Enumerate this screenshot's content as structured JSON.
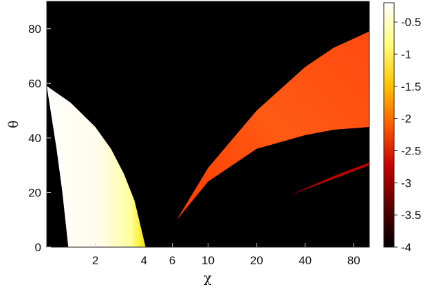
{
  "chart_data": {
    "type": "heatmap",
    "title": "",
    "xlabel": "χ",
    "ylabel": "θ",
    "x_scale": "log",
    "x_ticks": [
      2,
      4,
      6,
      10,
      20,
      40,
      80
    ],
    "x_tick_labels": [
      "2",
      "4",
      "6",
      "10",
      "20",
      "40",
      "80"
    ],
    "xlim": [
      1,
      100
    ],
    "y_ticks": [
      0,
      20,
      40,
      60,
      80
    ],
    "y_tick_labels": [
      "0",
      "20",
      "40",
      "60",
      "80"
    ],
    "ylim": [
      0,
      90
    ],
    "background_value": -4,
    "colorbar": {
      "min": -4,
      "max": -0.2,
      "ticks": [
        -0.5,
        -1,
        -1.5,
        -2,
        -2.5,
        -3,
        -3.5,
        -4
      ],
      "tick_labels": [
        "-0.5",
        "-1",
        "-1.5",
        "-2",
        "-2.5",
        "-3",
        "-3.5",
        "-4"
      ],
      "colormap": [
        "#000000",
        "#5a0000",
        "#c80000",
        "#ff5a00",
        "#ffc800",
        "#ffff80",
        "#ffffff"
      ]
    },
    "regions": [
      {
        "value": -0.3,
        "boundary": [
          [
            1,
            59
          ],
          [
            1.4,
            53
          ],
          [
            2,
            44
          ],
          [
            2.5,
            36
          ],
          [
            3,
            27
          ],
          [
            3.5,
            17
          ],
          [
            4.1,
            0
          ],
          [
            1.36,
            0
          ],
          [
            1.25,
            20
          ],
          [
            1.15,
            36
          ],
          [
            1,
            59
          ]
        ]
      },
      {
        "value": -1.9,
        "boundary": [
          [
            6.4,
            10
          ],
          [
            10,
            29
          ],
          [
            20,
            50
          ],
          [
            40,
            66
          ],
          [
            60,
            73
          ],
          [
            100,
            79
          ],
          [
            100,
            44
          ],
          [
            60,
            43
          ],
          [
            40,
            41
          ],
          [
            20,
            36
          ],
          [
            10,
            24
          ],
          [
            6.4,
            10
          ]
        ]
      },
      {
        "value": -2.8,
        "boundary": [
          [
            32,
            19
          ],
          [
            60,
            26
          ],
          [
            100,
            31
          ],
          [
            100,
            30
          ],
          [
            60,
            25
          ],
          [
            32,
            19
          ]
        ]
      }
    ]
  }
}
